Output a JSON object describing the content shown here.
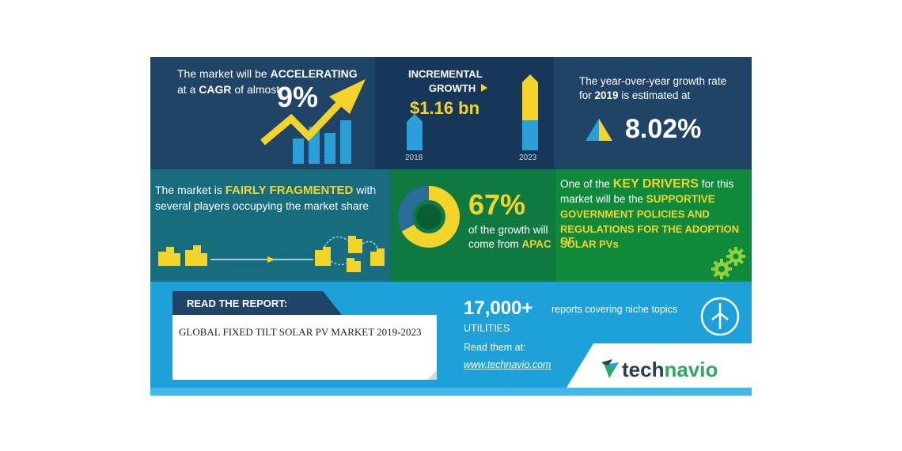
{
  "cagr": {
    "line1_prefix": "The market will be ",
    "line1_bold": "ACCELERATING",
    "line2_prefix": "at a ",
    "line2_bold": "CAGR",
    "line2_suffix": " of almost",
    "value": "9%"
  },
  "incremental": {
    "label_line1": "INCREMENTAL",
    "label_line2": "GROWTH",
    "value": "$1.16 bn",
    "year_start": "2018",
    "year_end": "2023"
  },
  "yoy": {
    "line1": "The year-over-year growth rate",
    "line2_prefix": "for ",
    "line2_bold": "2019",
    "line2_suffix": " is estimated at",
    "value": "8.02%"
  },
  "fragmented": {
    "prefix": "The market is ",
    "bold": "FAIRLY FRAGMENTED",
    "suffix": " with",
    "line2": "several players occupying the market share"
  },
  "apac": {
    "percent": 67,
    "value": "67%",
    "line1": "of the growth will",
    "line2_prefix": "come from ",
    "line2_bold": "APAC"
  },
  "drivers": {
    "line1_prefix": "One of the ",
    "line1_bold": "KEY DRIVERS",
    "line1_suffix": " for this",
    "line2_prefix": "market will be the ",
    "line2_bold": "SUPPORTIVE",
    "line3": "GOVERNMENT POLICIES AND",
    "line4": "REGULATIONS FOR THE ADOPTION OF",
    "line5": "SOLAR PVs"
  },
  "report": {
    "header": "READ THE REPORT:",
    "title": "GLOBAL FIXED TILT SOLAR PV MARKET 2019-2023",
    "count": "17,000+",
    "count_text": "reports covering niche topics",
    "category": "UTILITIES",
    "read_label": "Read them at:",
    "link": "www.technavio.com",
    "brand": "technavio"
  },
  "colors": {
    "accent_yellow": "#f5d42a",
    "accent_blue": "#1ea0d8",
    "navy": "#1f4468",
    "teal": "#176c80",
    "green": "#0e8a3a"
  },
  "icons": {
    "arrow": "rising-arrow-icon",
    "triangle": "growth-triangle-icon",
    "gear": "gear-icon",
    "turbine": "wind-turbine-icon",
    "buildings": "buildings-icon"
  }
}
